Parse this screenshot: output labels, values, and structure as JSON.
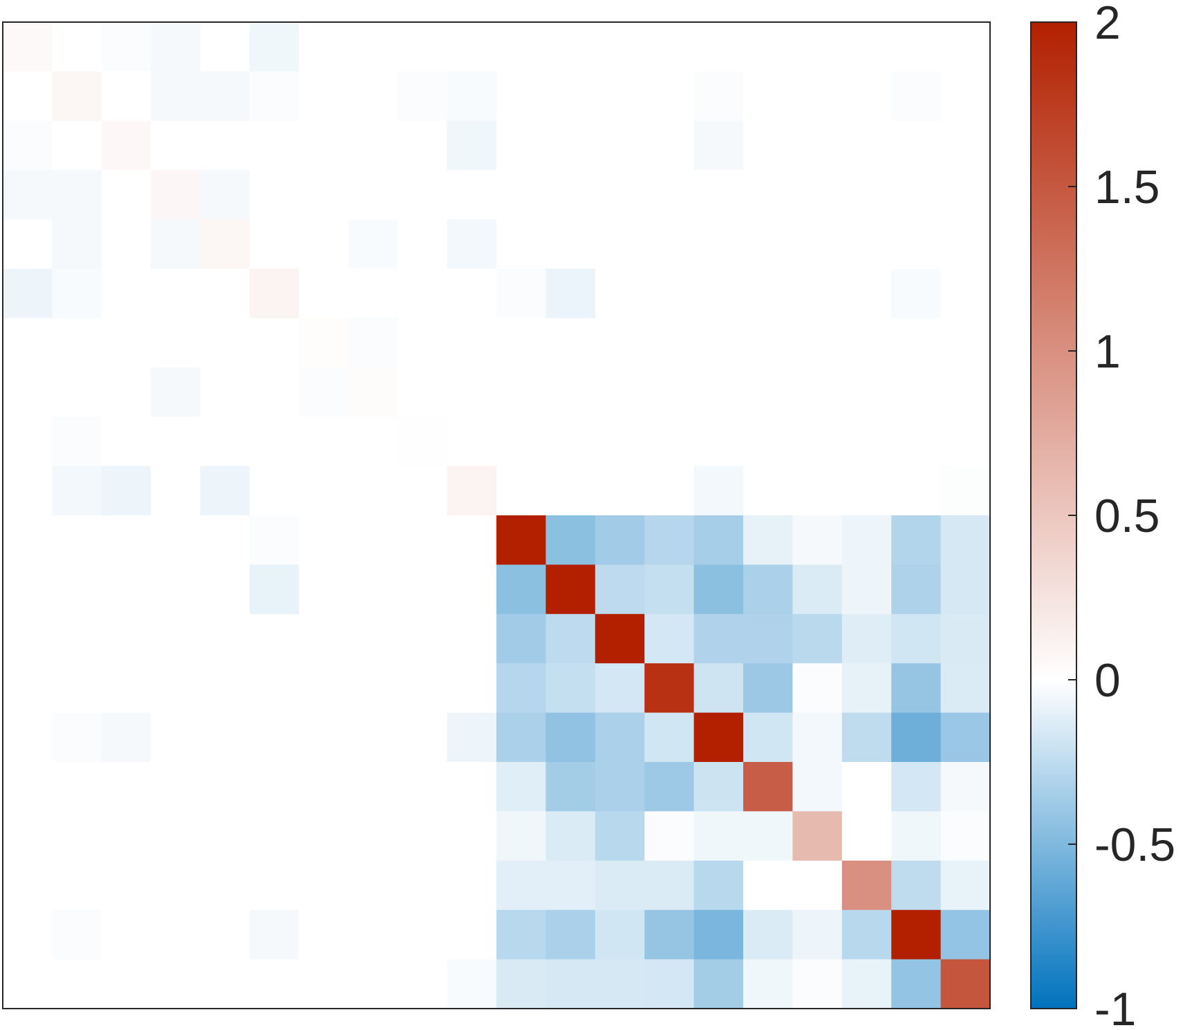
{
  "chart_data": {
    "type": "heatmap",
    "rows": 20,
    "cols": 20,
    "value_range": [
      -1,
      2
    ],
    "grid": false,
    "colorbar": {
      "position": "right",
      "ticks": [
        {
          "value": 2,
          "label": "2"
        },
        {
          "value": 1.5,
          "label": "1.5"
        },
        {
          "value": 1,
          "label": "1"
        },
        {
          "value": 0.5,
          "label": "0.5"
        },
        {
          "value": 0,
          "label": "0"
        },
        {
          "value": -0.5,
          "label": "-0.5"
        },
        {
          "value": -1,
          "label": "-1"
        }
      ],
      "colors": {
        "low": "#0072bd",
        "mid": "#ffffff",
        "high": "#b22000"
      }
    },
    "values": [
      [
        0.05,
        0,
        -0.02,
        -0.04,
        0,
        -0.06,
        0,
        0,
        0,
        0,
        0,
        0,
        0,
        0,
        0,
        0,
        0,
        0,
        0,
        0
      ],
      [
        0,
        0.08,
        0,
        -0.04,
        -0.04,
        -0.02,
        0,
        0,
        -0.02,
        -0.03,
        0,
        0,
        0,
        0,
        -0.02,
        0,
        0,
        0,
        -0.02,
        0
      ],
      [
        -0.02,
        0,
        0.06,
        0,
        0,
        0,
        0,
        0,
        0,
        -0.06,
        0,
        0,
        0,
        0,
        -0.04,
        0,
        0,
        0,
        0,
        0
      ],
      [
        -0.04,
        -0.04,
        0,
        0.07,
        -0.04,
        0,
        0,
        0,
        0,
        0,
        0,
        0,
        0,
        0,
        0,
        0,
        0,
        0,
        0,
        0
      ],
      [
        0,
        -0.04,
        0,
        -0.04,
        0.08,
        0,
        0,
        -0.03,
        0,
        -0.05,
        0,
        0,
        0,
        0,
        0,
        0,
        0,
        0,
        0,
        0
      ],
      [
        -0.07,
        -0.03,
        0,
        0,
        0,
        0.1,
        0,
        0,
        0,
        0,
        -0.02,
        -0.08,
        0,
        0,
        0,
        0,
        0,
        0,
        -0.03,
        0
      ],
      [
        0,
        0,
        0,
        0,
        0,
        0,
        0.02,
        -0.02,
        0,
        0,
        0,
        0,
        0,
        0,
        0,
        0,
        0,
        0,
        0,
        0
      ],
      [
        0,
        0,
        0,
        -0.04,
        0,
        0,
        -0.02,
        0.03,
        0,
        0,
        0,
        0,
        0,
        0,
        0,
        0,
        0,
        0,
        0,
        0
      ],
      [
        0,
        -0.02,
        0,
        0,
        0,
        0,
        0,
        0,
        0.01,
        0,
        0,
        0,
        0,
        0,
        0,
        0,
        0,
        0,
        0,
        0
      ],
      [
        0,
        -0.05,
        -0.07,
        0,
        -0.07,
        0,
        0,
        0,
        0,
        0.1,
        0,
        0,
        0,
        0,
        -0.05,
        0,
        0,
        0,
        0,
        -0.01
      ],
      [
        0,
        0,
        0,
        0,
        0,
        -0.02,
        0,
        0,
        0,
        0,
        2.0,
        -0.45,
        -0.37,
        -0.29,
        -0.35,
        -0.1,
        -0.04,
        -0.07,
        -0.3,
        -0.16
      ],
      [
        0,
        0,
        0,
        0,
        0,
        -0.09,
        0,
        0,
        0,
        0,
        -0.45,
        2.0,
        -0.26,
        -0.23,
        -0.45,
        -0.33,
        -0.14,
        -0.07,
        -0.32,
        -0.16
      ],
      [
        0,
        0,
        0,
        0,
        0,
        0,
        0,
        0,
        0,
        0,
        -0.37,
        -0.26,
        2.0,
        -0.17,
        -0.31,
        -0.31,
        -0.27,
        -0.13,
        -0.18,
        -0.15
      ],
      [
        0,
        0,
        0,
        0,
        0,
        0,
        0,
        0,
        0,
        0,
        -0.29,
        -0.23,
        -0.17,
        1.85,
        -0.19,
        -0.39,
        -0.02,
        -0.1,
        -0.41,
        -0.14
      ],
      [
        0,
        -0.02,
        -0.04,
        0,
        0,
        0,
        0,
        0,
        0,
        -0.07,
        -0.33,
        -0.43,
        -0.33,
        -0.18,
        2.0,
        -0.18,
        -0.05,
        -0.25,
        -0.57,
        -0.4
      ],
      [
        0,
        0,
        0,
        0,
        0,
        0,
        0,
        0,
        0,
        0,
        -0.12,
        -0.36,
        -0.33,
        -0.38,
        -0.2,
        1.45,
        -0.05,
        0,
        -0.17,
        -0.04
      ],
      [
        0,
        0,
        0,
        0,
        0,
        0,
        0,
        0,
        0,
        0,
        -0.06,
        -0.14,
        -0.28,
        -0.02,
        -0.06,
        -0.06,
        0.62,
        0,
        -0.06,
        -0.02
      ],
      [
        0,
        0,
        0,
        0,
        0,
        0,
        0,
        0,
        0,
        0,
        -0.11,
        -0.11,
        -0.14,
        -0.14,
        -0.28,
        0,
        0,
        1.0,
        -0.25,
        -0.09
      ],
      [
        0,
        -0.02,
        0,
        0,
        0,
        -0.04,
        0,
        0,
        0,
        0,
        -0.28,
        -0.33,
        -0.18,
        -0.41,
        -0.52,
        -0.14,
        -0.07,
        -0.28,
        2.0,
        -0.42
      ],
      [
        0,
        0,
        0,
        0,
        0,
        0,
        0,
        0,
        0,
        -0.03,
        -0.15,
        -0.16,
        -0.16,
        -0.17,
        -0.36,
        -0.06,
        -0.02,
        -0.09,
        -0.42,
        1.52
      ]
    ]
  }
}
